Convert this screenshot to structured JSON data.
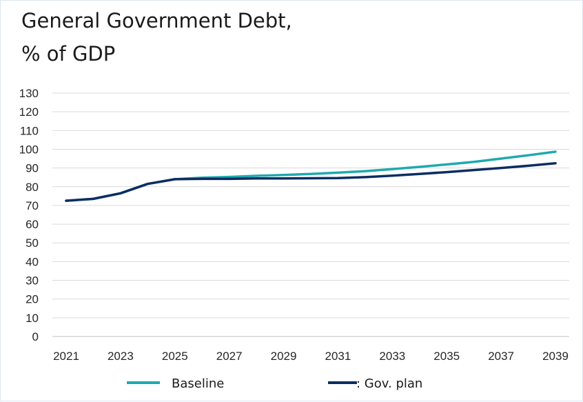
{
  "title": {
    "line1": "General Government Debt,",
    "line2": "% of GDP"
  },
  "colors": {
    "baseline": "#1fa9b0",
    "gov_plan": "#0d2d62",
    "grid": "#d9d9d9",
    "axis_text": "#262626"
  },
  "legend": {
    "baseline_label": "Baseline",
    "gov_plan_label": ": Gov. plan"
  },
  "chart_data": {
    "type": "line",
    "title": "General Government Debt, % of GDP",
    "xlabel": "",
    "ylabel": "",
    "ylim": [
      0,
      130
    ],
    "y_ticks": [
      0,
      10,
      20,
      30,
      40,
      50,
      60,
      70,
      80,
      90,
      100,
      110,
      120,
      130
    ],
    "x_ticks": [
      2021,
      2023,
      2025,
      2027,
      2029,
      2031,
      2033,
      2035,
      2037,
      2039
    ],
    "x": [
      2021,
      2022,
      2023,
      2024,
      2025,
      2026,
      2027,
      2028,
      2029,
      2030,
      2031,
      2032,
      2033,
      2034,
      2035,
      2036,
      2037,
      2038,
      2039
    ],
    "grid": true,
    "legend_position": "bottom",
    "series": [
      {
        "name": "Baseline",
        "color": "#1fa9b0",
        "values": [
          72.5,
          73.5,
          76.5,
          81.5,
          84,
          84.8,
          85.2,
          85.8,
          86.3,
          86.8,
          87.5,
          88.3,
          89.4,
          90.6,
          91.9,
          93.3,
          95,
          96.8,
          98.7
        ]
      },
      {
        "name": "Gov. plan",
        "color": "#0d2d62",
        "values": [
          72.5,
          73.5,
          76.5,
          81.5,
          84,
          84.2,
          84.2,
          84.4,
          84.4,
          84.5,
          84.6,
          85.1,
          85.9,
          86.8,
          87.8,
          88.9,
          90,
          91.2,
          92.5
        ]
      }
    ]
  }
}
